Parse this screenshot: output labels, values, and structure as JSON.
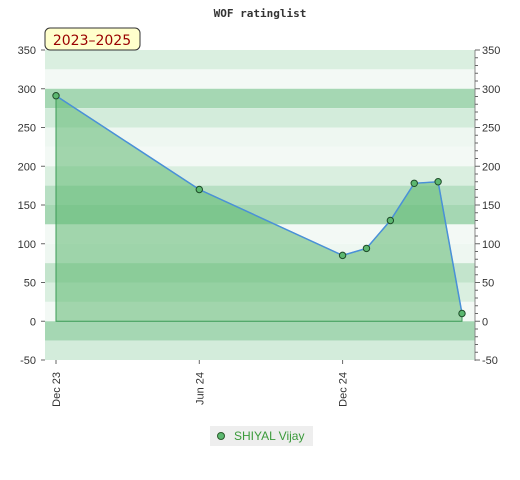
{
  "chart_data": {
    "type": "area",
    "title": "WOF ratinglist",
    "badge": "2023–2025",
    "ylim": [
      -50,
      350
    ],
    "yticks": [
      -50,
      0,
      50,
      100,
      150,
      200,
      250,
      300,
      350
    ],
    "x_labels": [
      "Dec 23",
      "Jun 24",
      "Dec 24"
    ],
    "grid": "horizontal bands",
    "legend_position": "bottom",
    "colors": {
      "area_fill": "#5cb870",
      "line": "#4a90d9",
      "marker": "#5cb870",
      "band_dark": "#b3dcc0",
      "band_light": "#eaf5ee"
    },
    "series": [
      {
        "name": "SHIYAL Vijay",
        "points": [
          {
            "x": "2023-12",
            "y": 291
          },
          {
            "x": "2024-06",
            "y": 170
          },
          {
            "x": "2024-12",
            "y": 85
          },
          {
            "x": "2025-01",
            "y": 94
          },
          {
            "x": "2025-02",
            "y": 130
          },
          {
            "x": "2025-03",
            "y": 178
          },
          {
            "x": "2025-04",
            "y": 180
          },
          {
            "x": "2025-05",
            "y": 10
          }
        ]
      }
    ]
  }
}
